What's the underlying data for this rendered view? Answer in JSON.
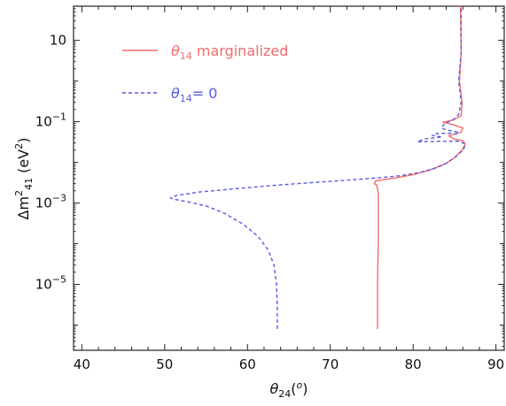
{
  "chart_data": {
    "type": "line",
    "xlabel": "θ24(o)",
    "ylabel": "Δm241 (eV2)",
    "xlim": [
      39,
      91
    ],
    "ylim_log10": [
      -6.62,
      1.84
    ],
    "y_scale": "log",
    "grid": false,
    "legend_position": "top-left",
    "x_ticks": [
      40,
      50,
      60,
      70,
      80,
      90
    ],
    "y_ticks": [
      {
        "value": 10,
        "label": "10"
      },
      {
        "value": 0.1,
        "label": "10",
        "exp": "−1"
      },
      {
        "value": 0.001,
        "label": "10",
        "exp": "−3"
      },
      {
        "value": 1e-05,
        "label": "10",
        "exp": "−5"
      }
    ],
    "series": [
      {
        "name": "θ14 marginalized",
        "legend_symbol": "θ",
        "legend_sub": "14",
        "legend_rest": " marginalized",
        "color": "#f26b6b",
        "style": "solid",
        "points": [
          [
            75.7,
            8e-07
          ],
          [
            75.7,
            1e-05
          ],
          [
            75.8,
            0.0001
          ],
          [
            75.8,
            0.0018
          ],
          [
            75.6,
            0.0028
          ],
          [
            75.3,
            0.003
          ],
          [
            75.5,
            0.0035
          ],
          [
            76.5,
            0.0038
          ],
          [
            78.0,
            0.0042
          ],
          [
            80.0,
            0.005
          ],
          [
            82.0,
            0.0065
          ],
          [
            83.8,
            0.009
          ],
          [
            85.0,
            0.013
          ],
          [
            85.9,
            0.02
          ],
          [
            86.3,
            0.028
          ],
          [
            86.0,
            0.034
          ],
          [
            85.0,
            0.037
          ],
          [
            84.3,
            0.045
          ],
          [
            85.8,
            0.055
          ],
          [
            86.0,
            0.07
          ],
          [
            84.8,
            0.085
          ],
          [
            83.6,
            0.097
          ],
          [
            84.8,
            0.11
          ],
          [
            85.8,
            0.14
          ],
          [
            85.9,
            0.3
          ],
          [
            85.6,
            1.0
          ],
          [
            85.8,
            5.0
          ],
          [
            85.7,
            70
          ]
        ]
      },
      {
        "name": "θ14= 0",
        "legend_symbol": "θ",
        "legend_sub": "14",
        "legend_rest": "= 0",
        "color": "#5a5ae6",
        "style": "dashed",
        "points": [
          [
            63.6,
            8e-07
          ],
          [
            63.6,
            3e-06
          ],
          [
            63.5,
            1e-05
          ],
          [
            63.2,
            3e-05
          ],
          [
            62.5,
            7e-05
          ],
          [
            61.3,
            0.00015
          ],
          [
            59.5,
            0.0003
          ],
          [
            57.3,
            0.00055
          ],
          [
            55.0,
            0.00085
          ],
          [
            52.5,
            0.0011
          ],
          [
            51.0,
            0.00125
          ],
          [
            50.7,
            0.00135
          ],
          [
            51.5,
            0.00155
          ],
          [
            54.0,
            0.00185
          ],
          [
            58.0,
            0.0022
          ],
          [
            63.0,
            0.0027
          ],
          [
            68.0,
            0.0032
          ],
          [
            72.5,
            0.0037
          ],
          [
            76.0,
            0.0042
          ],
          [
            78.5,
            0.0047
          ],
          [
            80.5,
            0.0055
          ],
          [
            82.5,
            0.007
          ],
          [
            84.0,
            0.0095
          ],
          [
            85.2,
            0.014
          ],
          [
            86.1,
            0.021
          ],
          [
            86.3,
            0.028
          ],
          [
            85.6,
            0.033
          ],
          [
            83.5,
            0.033
          ],
          [
            80.5,
            0.032
          ],
          [
            81.5,
            0.038
          ],
          [
            83.5,
            0.042
          ],
          [
            82.3,
            0.046
          ],
          [
            82.8,
            0.051
          ],
          [
            84.5,
            0.052
          ],
          [
            85.2,
            0.05
          ],
          [
            85.5,
            0.055
          ],
          [
            84.0,
            0.063
          ],
          [
            83.4,
            0.07
          ],
          [
            83.8,
            0.09
          ],
          [
            84.8,
            0.11
          ],
          [
            85.5,
            0.15
          ],
          [
            85.8,
            0.3
          ],
          [
            85.5,
            1.0
          ],
          [
            85.8,
            5.0
          ],
          [
            85.8,
            70
          ]
        ]
      }
    ]
  }
}
